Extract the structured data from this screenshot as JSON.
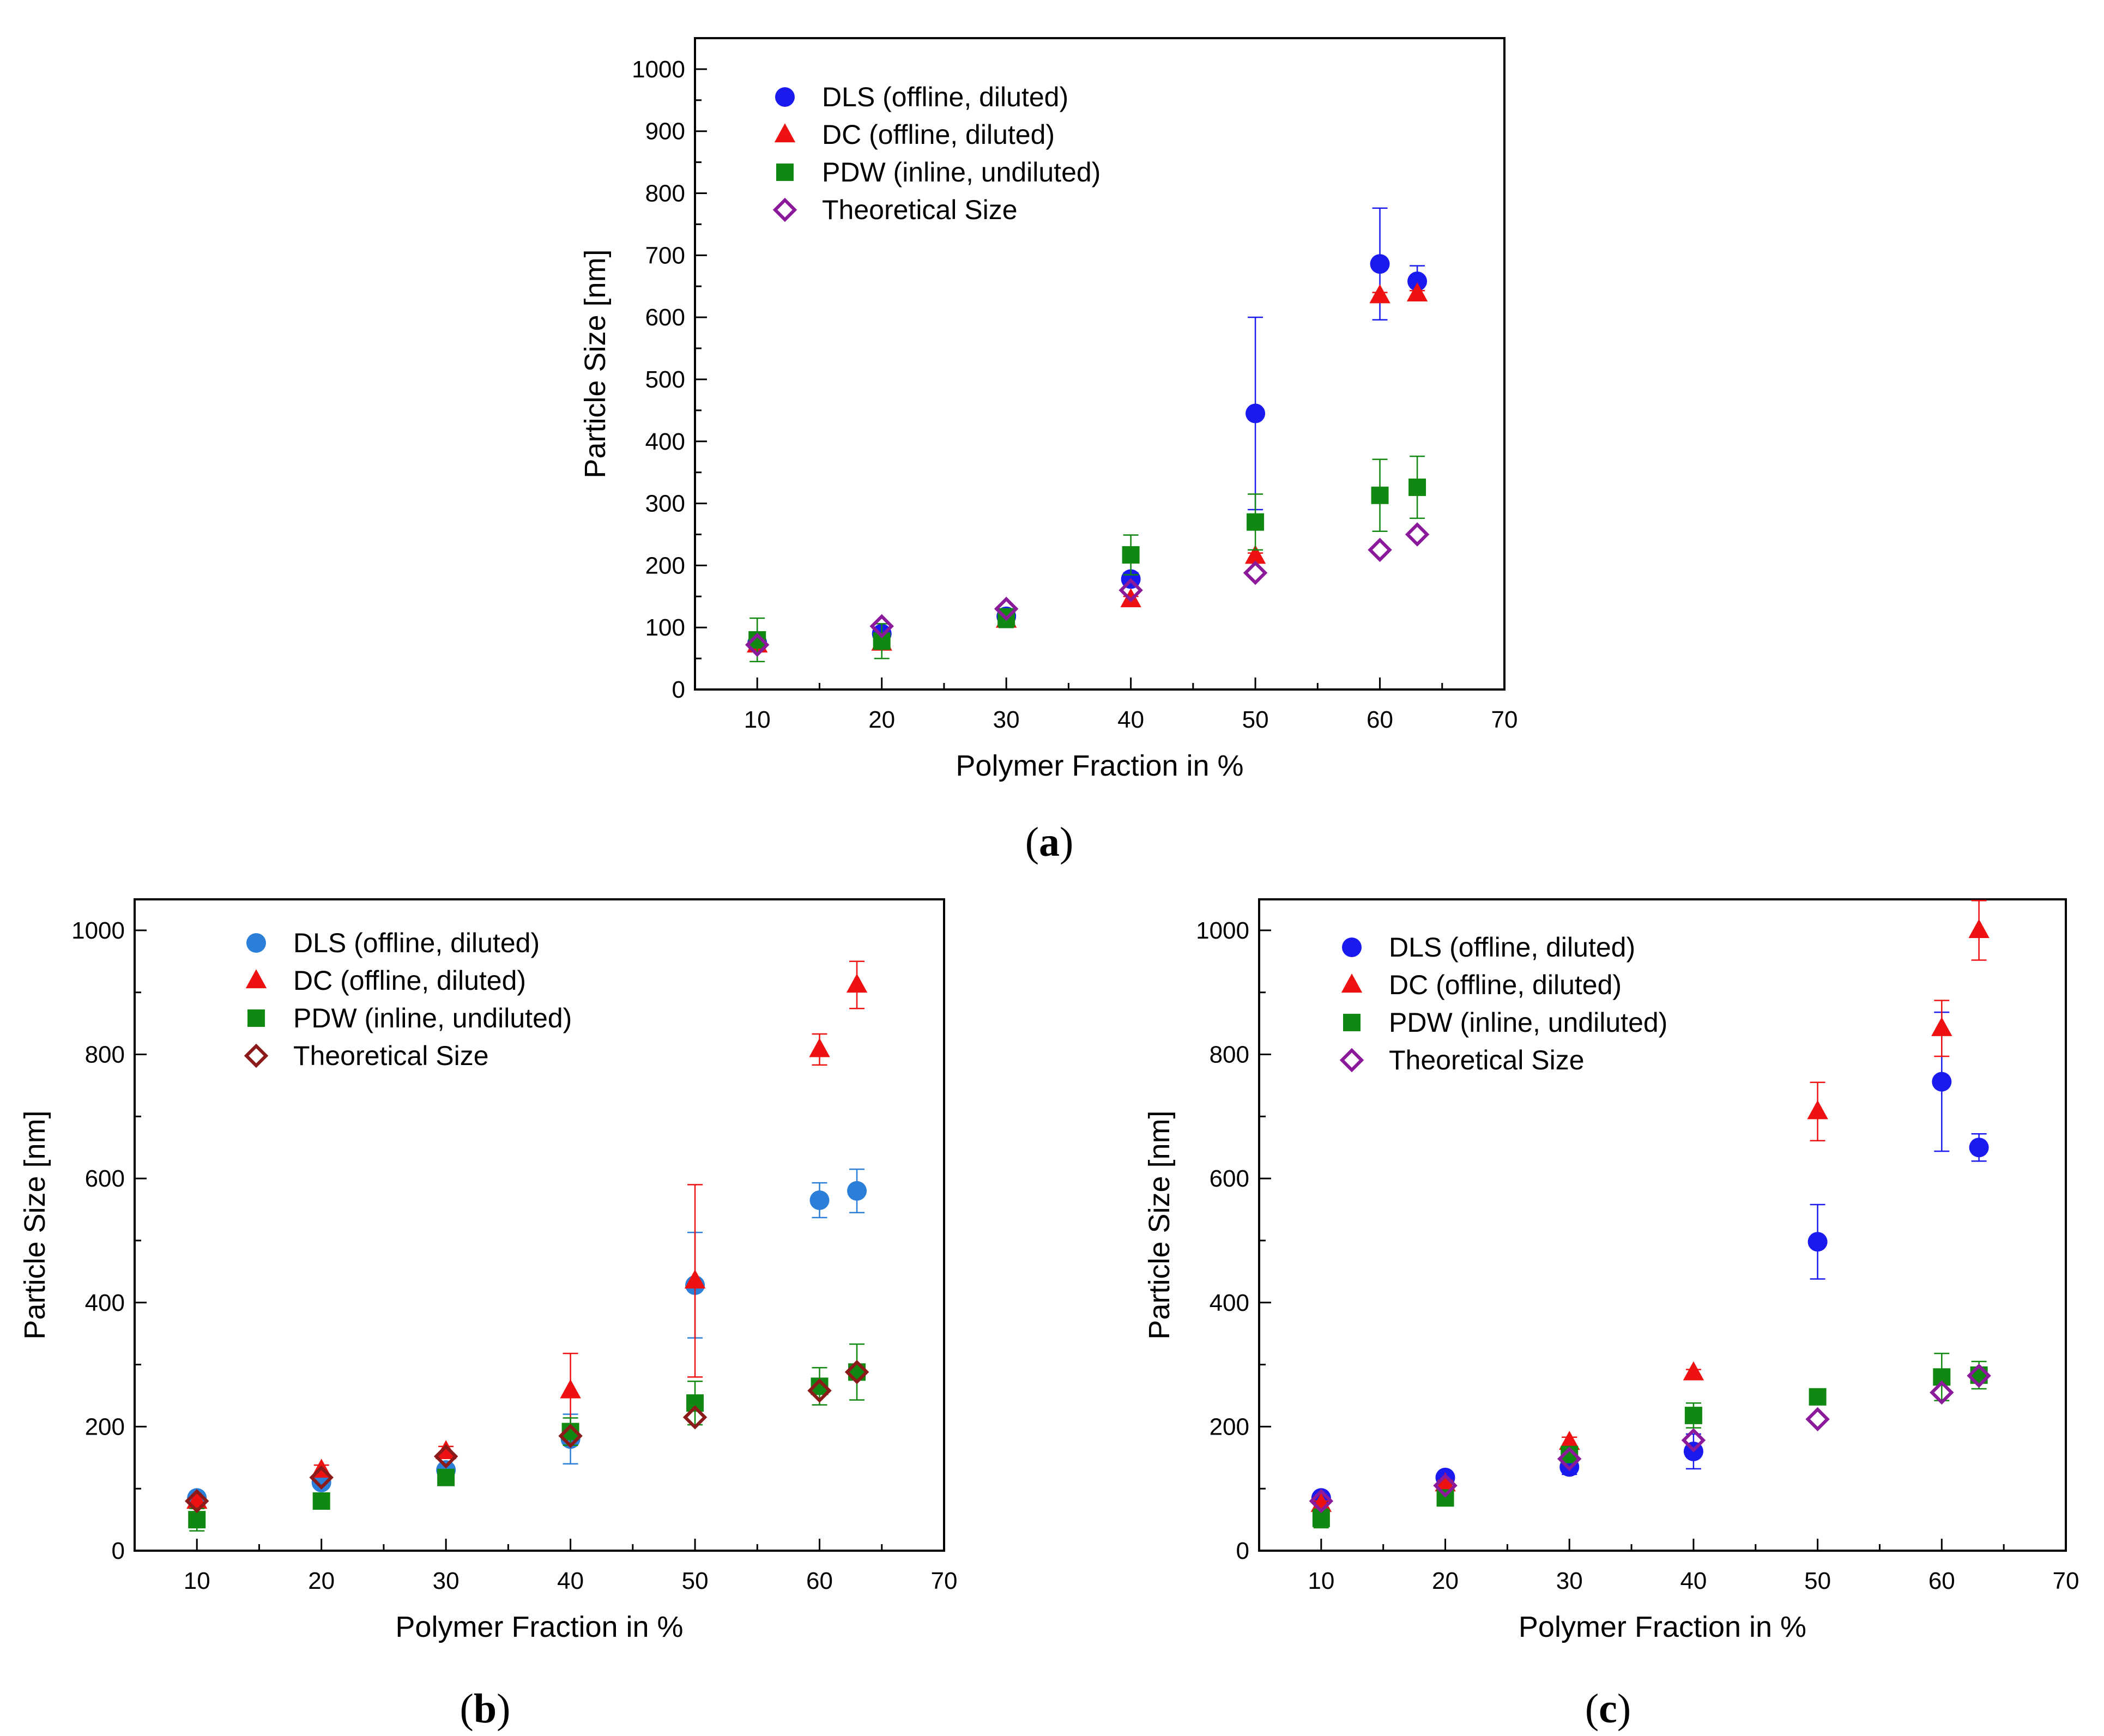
{
  "chart_data": [
    {
      "type": "scatter",
      "caption": "a",
      "xlabel": "Polymer Fraction in %",
      "ylabel": "Particle Size [nm]",
      "xlim": [
        5,
        70
      ],
      "ylim": [
        0,
        1050
      ],
      "x_ticks": [
        10,
        20,
        30,
        40,
        50,
        60,
        70
      ],
      "y_ticks": [
        0,
        100,
        200,
        300,
        400,
        500,
        600,
        700,
        800,
        900,
        1000
      ],
      "legend_position": "top-left",
      "series": [
        {
          "name": "DLS (offline, diluted)",
          "marker": "circle",
          "color": "#1a1aee",
          "points": [
            [
              10,
              75,
              10
            ],
            [
              20,
              90,
              10
            ],
            [
              30,
              118,
              10
            ],
            [
              40,
              178,
              10
            ],
            [
              50,
              445,
              155
            ],
            [
              60,
              686,
              90
            ],
            [
              63,
              658,
              25
            ]
          ]
        },
        {
          "name": "DC (offline, diluted)",
          "marker": "triangle",
          "color": "#ee1111",
          "points": [
            [
              10,
              72,
              5
            ],
            [
              20,
              75,
              5
            ],
            [
              30,
              112,
              5
            ],
            [
              40,
              145,
              5
            ],
            [
              50,
              215,
              5
            ],
            [
              60,
              635,
              5
            ],
            [
              63,
              638,
              5
            ]
          ]
        },
        {
          "name": "PDW (inline, undiluted)",
          "marker": "square",
          "color": "#118811",
          "points": [
            [
              10,
              80,
              35
            ],
            [
              20,
              78,
              28
            ],
            [
              30,
              115,
              15
            ],
            [
              40,
              217,
              32
            ],
            [
              50,
              270,
              45
            ],
            [
              60,
              313,
              58
            ],
            [
              63,
              326,
              50
            ]
          ]
        },
        {
          "name": "Theoretical Size",
          "marker": "diamond",
          "color": "#8b1a9b",
          "points": [
            [
              10,
              72
            ],
            [
              20,
              102
            ],
            [
              30,
              130
            ],
            [
              40,
              160
            ],
            [
              50,
              188
            ],
            [
              60,
              225
            ],
            [
              63,
              250
            ]
          ]
        }
      ]
    },
    {
      "type": "scatter",
      "caption": "b",
      "xlabel": "Polymer Fraction in %",
      "ylabel": "Particle Size [nm]",
      "xlim": [
        5,
        70
      ],
      "ylim": [
        0,
        1050
      ],
      "x_ticks": [
        10,
        20,
        30,
        40,
        50,
        60,
        70
      ],
      "y_ticks": [
        0,
        200,
        400,
        600,
        800,
        1000
      ],
      "legend_position": "top-left",
      "series": [
        {
          "name": "DLS (offline, diluted)",
          "marker": "circle",
          "color": "#2b7fd8",
          "points": [
            [
              10,
              85,
              8
            ],
            [
              20,
              110,
              8
            ],
            [
              30,
              130,
              8
            ],
            [
              40,
              180,
              40
            ],
            [
              50,
              428,
              85
            ],
            [
              60,
              565,
              28
            ],
            [
              63,
              580,
              35
            ]
          ]
        },
        {
          "name": "DC (offline, diluted)",
          "marker": "triangle",
          "color": "#ee1111",
          "points": [
            [
              10,
              80,
              5
            ],
            [
              20,
              130,
              8
            ],
            [
              30,
              160,
              8
            ],
            [
              40,
              258,
              60
            ],
            [
              50,
              435,
              155
            ],
            [
              60,
              808,
              25
            ],
            [
              63,
              912,
              38
            ]
          ]
        },
        {
          "name": "PDW (inline, undiluted)",
          "marker": "square",
          "color": "#118811",
          "points": [
            [
              10,
              50,
              18
            ],
            [
              20,
              80,
              8
            ],
            [
              30,
              118,
              8
            ],
            [
              40,
              192,
              22
            ],
            [
              50,
              238,
              35
            ],
            [
              60,
              265,
              30
            ],
            [
              63,
              288,
              45
            ]
          ]
        },
        {
          "name": "Theoretical Size",
          "marker": "diamond",
          "color": "#8b1a1a",
          "points": [
            [
              10,
              80
            ],
            [
              20,
              118
            ],
            [
              30,
              152
            ],
            [
              40,
              185
            ],
            [
              50,
              215
            ],
            [
              60,
              258
            ],
            [
              63,
              288
            ]
          ]
        }
      ]
    },
    {
      "type": "scatter",
      "caption": "c",
      "xlabel": "Polymer Fraction in %",
      "ylabel": "Particle Size [nm]",
      "xlim": [
        5,
        70
      ],
      "ylim": [
        0,
        1050
      ],
      "x_ticks": [
        10,
        20,
        30,
        40,
        50,
        60,
        70
      ],
      "y_ticks": [
        0,
        200,
        400,
        600,
        800,
        1000
      ],
      "legend_position": "top-left",
      "series": [
        {
          "name": "DLS (offline, diluted)",
          "marker": "circle",
          "color": "#1a1aee",
          "points": [
            [
              10,
              85,
              8
            ],
            [
              20,
              118,
              8
            ],
            [
              30,
              135,
              12
            ],
            [
              40,
              160,
              28
            ],
            [
              50,
              498,
              60
            ],
            [
              60,
              756,
              112
            ],
            [
              63,
              650,
              22
            ]
          ]
        },
        {
          "name": "DC (offline, diluted)",
          "marker": "triangle",
          "color": "#ee1111",
          "points": [
            [
              10,
              75,
              5
            ],
            [
              20,
              108,
              5
            ],
            [
              30,
              175,
              8
            ],
            [
              40,
              287,
              5
            ],
            [
              50,
              708,
              47
            ],
            [
              60,
              842,
              45
            ],
            [
              63,
              1000,
              48
            ]
          ]
        },
        {
          "name": "PDW (inline, undiluted)",
          "marker": "square",
          "color": "#118811",
          "points": [
            [
              10,
              52,
              15
            ],
            [
              20,
              85,
              5
            ],
            [
              30,
              155,
              8
            ],
            [
              40,
              218,
              20
            ],
            [
              50,
              248,
              8
            ],
            [
              60,
              280,
              38
            ],
            [
              63,
              283,
              22
            ]
          ]
        },
        {
          "name": "Theoretical Size",
          "marker": "diamond",
          "color": "#8b1a9b",
          "points": [
            [
              10,
              80
            ],
            [
              20,
              105
            ],
            [
              30,
              148
            ],
            [
              40,
              178
            ],
            [
              50,
              212
            ],
            [
              60,
              255
            ],
            [
              63,
              282
            ]
          ]
        }
      ]
    }
  ]
}
